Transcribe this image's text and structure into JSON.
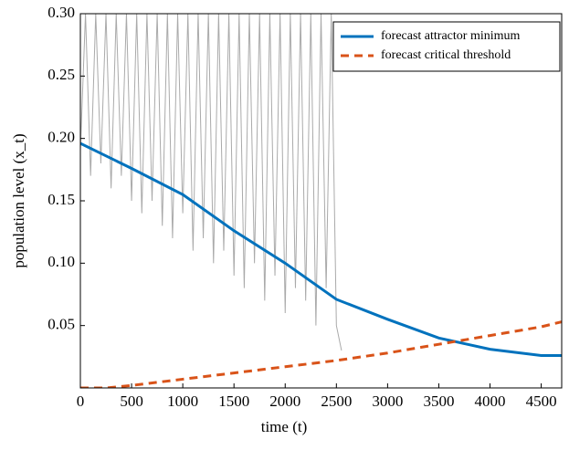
{
  "chart_data": {
    "type": "line",
    "xlabel": "time (t)",
    "ylabel": "population level (x_t)",
    "xlim": [
      0,
      4700
    ],
    "ylim": [
      0,
      0.3
    ],
    "xticks": [
      0,
      500,
      1000,
      1500,
      2000,
      2500,
      3000,
      3500,
      4000,
      4500
    ],
    "yticks": [
      0.05,
      {
        "value": 0.1,
        "label": "0.10"
      },
      0.15,
      {
        "value": 0.2,
        "label": "0.20"
      },
      0.25,
      {
        "value": 0.3,
        "label": "0.30"
      }
    ],
    "legend": "upper right",
    "series": [
      {
        "color": "#aaaaaa",
        "x": [
          0,
          50,
          100,
          150,
          200,
          250,
          300,
          350,
          400,
          450,
          500,
          550,
          600,
          650,
          700,
          750,
          800,
          850,
          900,
          950,
          1000,
          1050,
          1100,
          1150,
          1200,
          1250,
          1300,
          1350,
          1400,
          1450,
          1500,
          1550,
          1600,
          1650,
          1700,
          1750,
          1800,
          1850,
          1900,
          1950,
          2000,
          2050,
          2100,
          2150,
          2200,
          2250,
          2300,
          2350,
          2400,
          2450,
          2500,
          2550
        ],
        "values": [
          0.19,
          0.3,
          0.17,
          0.3,
          0.18,
          0.3,
          0.16,
          0.3,
          0.17,
          0.3,
          0.15,
          0.3,
          0.14,
          0.3,
          0.15,
          0.3,
          0.13,
          0.3,
          0.12,
          0.3,
          0.14,
          0.3,
          0.11,
          0.3,
          0.12,
          0.3,
          0.1,
          0.3,
          0.11,
          0.3,
          0.09,
          0.3,
          0.08,
          0.3,
          0.1,
          0.3,
          0.07,
          0.3,
          0.09,
          0.3,
          0.06,
          0.3,
          0.08,
          0.3,
          0.07,
          0.3,
          0.05,
          0.3,
          0.08,
          0.3,
          0.05,
          0.03
        ]
      },
      {
        "name": "forecast attractor minimum",
        "color": "#0072bd",
        "dash": false,
        "x": [
          0,
          500,
          1000,
          1500,
          2000,
          2500,
          3000,
          3500,
          4000,
          4500,
          4700
        ],
        "values": [
          0.196,
          0.176,
          0.155,
          0.126,
          0.1,
          0.071,
          0.055,
          0.04,
          0.031,
          0.026,
          0.026
        ]
      },
      {
        "name": "forecast critical threshold",
        "color": "#d95319",
        "dash": true,
        "x": [
          0,
          250,
          500,
          1000,
          1500,
          2000,
          2500,
          3000,
          3500,
          4000,
          4500,
          4700
        ],
        "values": [
          0,
          0,
          0.002,
          0.007,
          0.012,
          0.017,
          0.022,
          0.028,
          0.035,
          0.042,
          0.049,
          0.053
        ]
      }
    ]
  }
}
